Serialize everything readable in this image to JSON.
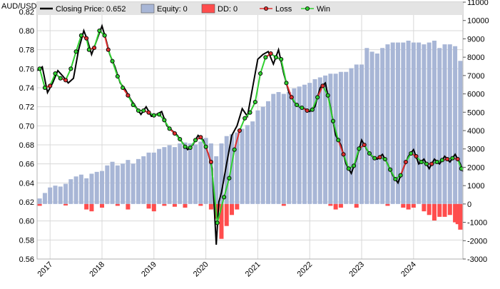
{
  "chart_data": {
    "type": "line",
    "title": "",
    "symbol": "AUD/USD",
    "x_start": 2016.75,
    "x_end": 2024.95,
    "x_ticks": [
      "2017",
      "2018",
      "2019",
      "2020",
      "2021",
      "2022",
      "2023",
      "2024"
    ],
    "left_axis": {
      "min": 0.56,
      "max": 0.83,
      "ticks": [
        "0.56",
        "0.58",
        "0.60",
        "0.62",
        "0.64",
        "0.66",
        "0.68",
        "0.70",
        "0.72",
        "0.74",
        "0.76",
        "0.78",
        "0.80",
        "0.82"
      ]
    },
    "right_axis": {
      "min": -3000,
      "max": 11000,
      "ticks": [
        "-3000",
        "-2000",
        "-1000",
        "0",
        "1000",
        "2000",
        "3000",
        "4000",
        "5000",
        "6000",
        "7000",
        "8000",
        "9000",
        "10000",
        "11000"
      ]
    },
    "grid": true,
    "legend_position": "top",
    "legend": [
      {
        "label": "Closing Price: 0.652",
        "color": "#000000",
        "kind": "line"
      },
      {
        "label": "Equity: 0",
        "color": "#a8b6d6",
        "kind": "box"
      },
      {
        "label": "DD: 0",
        "color": "#ff4d4d",
        "kind": "box"
      },
      {
        "label": "Loss",
        "color": "#e03030",
        "kind": "marker"
      },
      {
        "label": "Win",
        "color": "#30d030",
        "kind": "marker"
      }
    ],
    "colors": {
      "price": "#000000",
      "equity": "#a8b6d6",
      "drawdown": "#ff4d4d",
      "loss": "#e03030",
      "win": "#30d030",
      "grid": "#d8d8d8",
      "legend_bg": "#e4e4e4"
    },
    "price_series": {
      "x": [
        2016.75,
        2016.85,
        2016.95,
        2017.05,
        2017.15,
        2017.25,
        2017.35,
        2017.45,
        2017.55,
        2017.65,
        2017.72,
        2017.8,
        2017.9,
        2018.0,
        2018.08,
        2018.15,
        2018.25,
        2018.35,
        2018.45,
        2018.55,
        2018.65,
        2018.75,
        2018.85,
        2018.95,
        2019.05,
        2019.15,
        2019.25,
        2019.35,
        2019.45,
        2019.55,
        2019.65,
        2019.75,
        2019.85,
        2019.95,
        2020.05,
        2020.12,
        2020.2,
        2020.25,
        2020.3,
        2020.4,
        2020.5,
        2020.6,
        2020.7,
        2020.8,
        2020.9,
        2021.0,
        2021.1,
        2021.2,
        2021.3,
        2021.4,
        2021.5,
        2021.6,
        2021.7,
        2021.8,
        2021.9,
        2022.0,
        2022.1,
        2022.2,
        2022.3,
        2022.4,
        2022.5,
        2022.6,
        2022.7,
        2022.8,
        2022.9,
        2023.0,
        2023.1,
        2023.2,
        2023.3,
        2023.4,
        2023.5,
        2023.6,
        2023.7,
        2023.8,
        2023.9,
        2024.0,
        2024.1,
        2024.2,
        2024.3,
        2024.4,
        2024.5,
        2024.6,
        2024.7,
        2024.8,
        2024.9,
        2024.95
      ],
      "y": [
        0.758,
        0.762,
        0.735,
        0.745,
        0.758,
        0.752,
        0.745,
        0.75,
        0.78,
        0.8,
        0.79,
        0.775,
        0.79,
        0.805,
        0.79,
        0.775,
        0.762,
        0.745,
        0.738,
        0.728,
        0.72,
        0.712,
        0.72,
        0.71,
        0.712,
        0.715,
        0.7,
        0.695,
        0.69,
        0.682,
        0.675,
        0.68,
        0.69,
        0.685,
        0.67,
        0.655,
        0.575,
        0.62,
        0.63,
        0.66,
        0.69,
        0.7,
        0.718,
        0.71,
        0.74,
        0.77,
        0.775,
        0.778,
        0.765,
        0.78,
        0.755,
        0.735,
        0.725,
        0.72,
        0.718,
        0.715,
        0.72,
        0.74,
        0.745,
        0.72,
        0.69,
        0.68,
        0.66,
        0.65,
        0.665,
        0.685,
        0.675,
        0.668,
        0.665,
        0.67,
        0.66,
        0.648,
        0.64,
        0.655,
        0.668,
        0.675,
        0.66,
        0.665,
        0.655,
        0.665,
        0.66,
        0.668,
        0.662,
        0.67,
        0.66,
        0.652
      ]
    },
    "trades": {
      "x": [
        2016.8,
        2016.9,
        2017.0,
        2017.1,
        2017.2,
        2017.3,
        2017.4,
        2017.5,
        2017.6,
        2017.7,
        2017.75,
        2017.85,
        2017.95,
        2018.05,
        2018.12,
        2018.2,
        2018.3,
        2018.4,
        2018.5,
        2018.6,
        2018.7,
        2018.8,
        2018.9,
        2019.0,
        2019.1,
        2019.2,
        2019.3,
        2019.4,
        2019.5,
        2019.6,
        2019.7,
        2019.8,
        2019.9,
        2020.0,
        2020.1,
        2020.22,
        2020.35,
        2020.45,
        2020.55,
        2020.65,
        2020.75,
        2020.85,
        2020.95,
        2021.05,
        2021.15,
        2021.25,
        2021.35,
        2021.45,
        2021.55,
        2021.65,
        2021.75,
        2021.85,
        2021.95,
        2022.05,
        2022.15,
        2022.25,
        2022.35,
        2022.45,
        2022.55,
        2022.65,
        2022.75,
        2022.85,
        2022.95,
        2023.05,
        2023.15,
        2023.25,
        2023.35,
        2023.45,
        2023.55,
        2023.65,
        2023.75,
        2023.85,
        2023.95,
        2024.05,
        2024.15,
        2024.25,
        2024.35,
        2024.45,
        2024.55,
        2024.65,
        2024.75,
        2024.85,
        2024.92
      ],
      "y": [
        0.76,
        0.74,
        0.742,
        0.755,
        0.75,
        0.748,
        0.76,
        0.778,
        0.795,
        0.792,
        0.78,
        0.782,
        0.8,
        0.795,
        0.78,
        0.768,
        0.752,
        0.74,
        0.732,
        0.722,
        0.716,
        0.716,
        0.714,
        0.711,
        0.712,
        0.706,
        0.697,
        0.692,
        0.686,
        0.678,
        0.677,
        0.685,
        0.688,
        0.678,
        0.662,
        0.598,
        0.625,
        0.645,
        0.675,
        0.695,
        0.708,
        0.714,
        0.725,
        0.755,
        0.772,
        0.776,
        0.772,
        0.77,
        0.745,
        0.73,
        0.722,
        0.719,
        0.716,
        0.717,
        0.73,
        0.742,
        0.732,
        0.705,
        0.685,
        0.67,
        0.655,
        0.658,
        0.676,
        0.68,
        0.671,
        0.666,
        0.667,
        0.665,
        0.654,
        0.644,
        0.648,
        0.662,
        0.671,
        0.668,
        0.662,
        0.66,
        0.66,
        0.662,
        0.664,
        0.665,
        0.666,
        0.665,
        0.655
      ],
      "win": [
        true,
        true,
        false,
        true,
        true,
        false,
        true,
        true,
        true,
        false,
        true,
        false,
        true,
        true,
        false,
        true,
        true,
        true,
        false,
        true,
        true,
        true,
        false,
        true,
        true,
        true,
        true,
        false,
        true,
        true,
        true,
        true,
        false,
        true,
        false,
        true,
        true,
        true,
        true,
        false,
        true,
        true,
        true,
        true,
        true,
        false,
        true,
        true,
        true,
        false,
        true,
        true,
        false,
        true,
        true,
        false,
        true,
        true,
        true,
        false,
        true,
        true,
        true,
        false,
        true,
        true,
        false,
        true,
        true,
        true,
        true,
        false,
        true,
        false,
        true,
        true,
        false,
        true,
        true,
        false,
        true,
        false,
        true
      ]
    },
    "equity": {
      "x": [
        2016.8,
        2016.9,
        2017.0,
        2017.1,
        2017.2,
        2017.3,
        2017.4,
        2017.5,
        2017.6,
        2017.7,
        2017.8,
        2017.9,
        2018.0,
        2018.1,
        2018.2,
        2018.3,
        2018.4,
        2018.5,
        2018.6,
        2018.7,
        2018.8,
        2018.9,
        2019.0,
        2019.1,
        2019.2,
        2019.3,
        2019.4,
        2019.5,
        2019.6,
        2019.7,
        2019.8,
        2019.9,
        2020.0,
        2020.1,
        2020.2,
        2020.3,
        2020.4,
        2020.5,
        2020.6,
        2020.7,
        2020.8,
        2020.9,
        2021.0,
        2021.1,
        2021.2,
        2021.3,
        2021.4,
        2021.5,
        2021.6,
        2021.7,
        2021.8,
        2021.9,
        2022.0,
        2022.1,
        2022.2,
        2022.3,
        2022.4,
        2022.5,
        2022.6,
        2022.7,
        2022.8,
        2022.9,
        2023.0,
        2023.1,
        2023.2,
        2023.3,
        2023.4,
        2023.5,
        2023.6,
        2023.7,
        2023.8,
        2023.9,
        2024.0,
        2024.1,
        2024.2,
        2024.3,
        2024.4,
        2024.5,
        2024.6,
        2024.7,
        2024.8,
        2024.9
      ],
      "y": [
        300,
        600,
        900,
        1000,
        950,
        1100,
        1350,
        1500,
        1600,
        1400,
        1650,
        1750,
        1800,
        2100,
        2300,
        2100,
        2200,
        2400,
        2200,
        2450,
        2600,
        2800,
        2800,
        3000,
        3100,
        3200,
        3100,
        3300,
        3350,
        3300,
        3250,
        3400,
        3600,
        3300,
        2600,
        3300,
        3700,
        3800,
        3900,
        4100,
        4300,
        4500,
        5100,
        5300,
        5600,
        6000,
        6100,
        6000,
        6100,
        6300,
        6400,
        6500,
        6600,
        6800,
        6900,
        7000,
        7100,
        7100,
        7200,
        7200,
        7400,
        7600,
        7600,
        8500,
        8300,
        8200,
        8500,
        8700,
        8800,
        8800,
        8800,
        8900,
        8800,
        8800,
        8700,
        8800,
        8900,
        8500,
        8700,
        8700,
        8600,
        7800
      ]
    },
    "drawdown": {
      "x": [
        2016.8,
        2017.3,
        2017.7,
        2017.8,
        2018.0,
        2018.3,
        2018.5,
        2018.9,
        2019.0,
        2019.2,
        2019.4,
        2019.6,
        2019.9,
        2020.1,
        2020.2,
        2020.3,
        2020.4,
        2020.5,
        2020.6,
        2021.5,
        2022.4,
        2022.5,
        2022.6,
        2022.9,
        2023.5,
        2023.8,
        2023.9,
        2024.0,
        2024.2,
        2024.3,
        2024.4,
        2024.5,
        2024.6,
        2024.7,
        2024.8,
        2024.85,
        2024.9
      ],
      "y": [
        -100,
        -80,
        -300,
        -400,
        -200,
        -100,
        -300,
        -250,
        -400,
        -100,
        -150,
        -200,
        -100,
        -300,
        -800,
        -1900,
        -1200,
        -600,
        -300,
        -100,
        -100,
        -300,
        -200,
        -200,
        -100,
        -200,
        -300,
        -200,
        -400,
        -600,
        -900,
        -700,
        -700,
        -600,
        -1000,
        -1100,
        -1400
      ]
    }
  }
}
